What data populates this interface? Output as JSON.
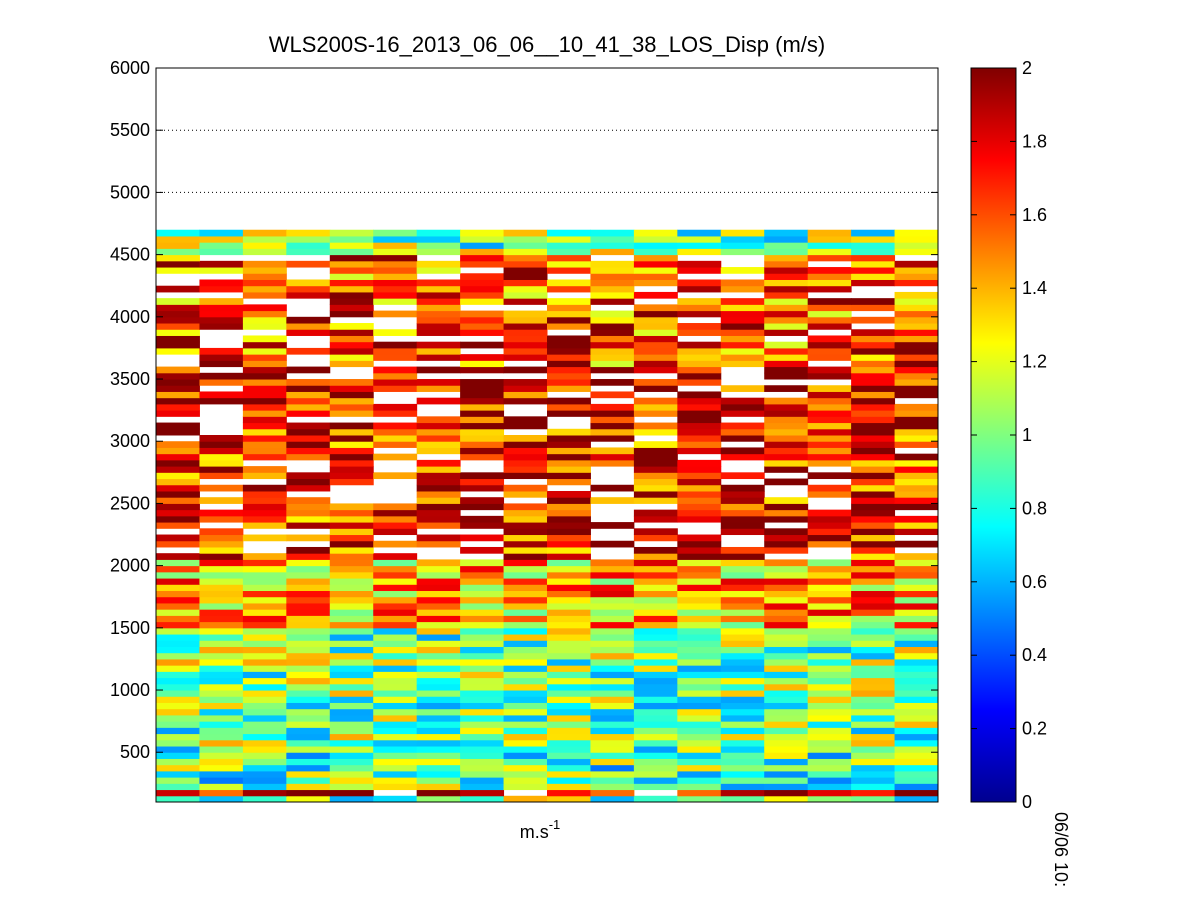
{
  "chart_data": {
    "type": "heatmap",
    "title": "WLS200S-16_2013_06_06__10_41_38_LOS_Disp (m/s)",
    "xlabel": "m.s",
    "xlabel_superscript": "-1",
    "side_label": "06/06 10:",
    "ylim": [
      100,
      6000
    ],
    "yticks": [
      500,
      1000,
      1500,
      2000,
      2500,
      3000,
      3500,
      4000,
      4500,
      5000,
      5500,
      6000
    ],
    "ygrid_lines": [
      5000,
      5500
    ],
    "colorbar": {
      "colormap": "jet",
      "range": [
        0,
        2
      ],
      "ticks": [
        0,
        0.2,
        0.4,
        0.6,
        0.8,
        1,
        1.2,
        1.4,
        1.6,
        1.8,
        2
      ]
    },
    "columns": 18,
    "y_start": 100,
    "row_height": 50,
    "bands": [
      {
        "from": 100,
        "to": 150,
        "level": 1.0
      },
      {
        "from": 150,
        "to": 200,
        "level": 1.8
      },
      {
        "from": 200,
        "to": 550,
        "level": 0.9
      },
      {
        "from": 550,
        "to": 1500,
        "level": 1.0
      },
      {
        "from": 1500,
        "to": 2050,
        "level": 1.4
      },
      {
        "from": 2050,
        "to": 3100,
        "level": 1.7
      },
      {
        "from": 3100,
        "to": 3600,
        "level": 1.8
      },
      {
        "from": 3600,
        "to": 4500,
        "level": 1.6
      },
      {
        "from": 4500,
        "to": 4700,
        "level": 1.0
      }
    ]
  }
}
